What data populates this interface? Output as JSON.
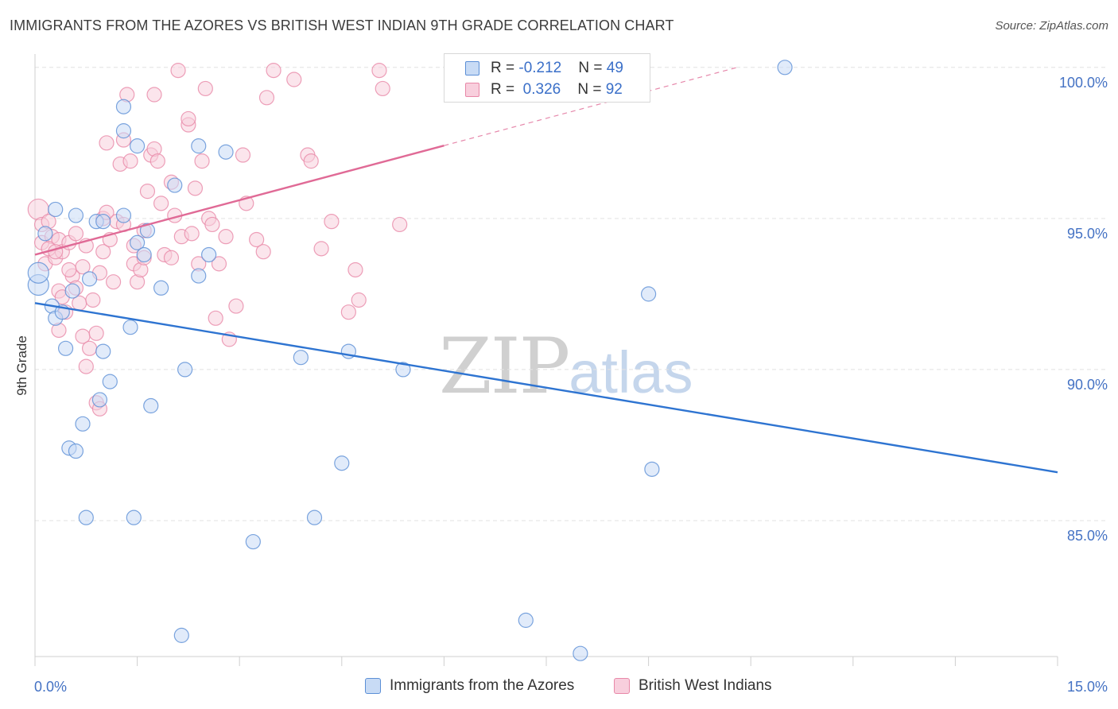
{
  "title": "IMMIGRANTS FROM THE AZORES VS BRITISH WEST INDIAN 9TH GRADE CORRELATION CHART",
  "source": "Source: ZipAtlas.com",
  "watermark": {
    "zip": "ZIP",
    "atlas": "atlas"
  },
  "legend_top": {
    "rows": [
      {
        "r_label": "R = ",
        "r_value": "-0.212",
        "n_label": "N = ",
        "n_value": "49"
      },
      {
        "r_label": "R = ",
        "r_value": " 0.326",
        "n_label": "N = ",
        "n_value": "92"
      }
    ]
  },
  "legend_bottom": [
    "Immigrants from the Azores",
    "British West Indians"
  ],
  "colors": {
    "blue": "#5b8fd6",
    "blue_fill": "#c8dbf5",
    "blue_line": "#2e74d1",
    "pink": "#e888a8",
    "pink_fill": "#f8cfdd",
    "pink_line": "#e06a96",
    "tick_text": "#4472c4"
  },
  "chart_data": {
    "type": "scatter",
    "title": "IMMIGRANTS FROM THE AZORES VS BRITISH WEST INDIAN 9TH GRADE CORRELATION CHART",
    "xlabel": "",
    "ylabel": "9th Grade",
    "xlim": [
      0,
      15
    ],
    "ylim": [
      80.5,
      100.6
    ],
    "x_tick_labels": [
      "0.0%",
      "15.0%"
    ],
    "y_ticks": [
      85,
      90,
      95,
      100
    ],
    "y_tick_labels": [
      "85.0%",
      "90.0%",
      "95.0%",
      "100.0%"
    ],
    "grid": true,
    "legend_position": "top-center",
    "series": [
      {
        "name": "Immigrants from the Azores",
        "R": -0.212,
        "N": 49,
        "trend": {
          "x": [
            0,
            15
          ],
          "y": [
            92.2,
            86.6
          ],
          "solid_until": 15
        },
        "points": [
          [
            0.05,
            92.8
          ],
          [
            0.05,
            93.2
          ],
          [
            0.15,
            94.5
          ],
          [
            0.25,
            92.1
          ],
          [
            0.3,
            95.3
          ],
          [
            0.3,
            91.7
          ],
          [
            0.4,
            91.9
          ],
          [
            0.45,
            90.7
          ],
          [
            0.5,
            87.4
          ],
          [
            0.55,
            92.6
          ],
          [
            0.6,
            87.3
          ],
          [
            0.6,
            95.1
          ],
          [
            0.7,
            88.2
          ],
          [
            0.75,
            85.1
          ],
          [
            0.8,
            93.0
          ],
          [
            0.9,
            94.9
          ],
          [
            0.95,
            89.0
          ],
          [
            1.0,
            90.6
          ],
          [
            1.1,
            89.6
          ],
          [
            1.3,
            97.9
          ],
          [
            1.3,
            98.7
          ],
          [
            1.3,
            95.1
          ],
          [
            1.4,
            91.4
          ],
          [
            1.45,
            85.1
          ],
          [
            1.5,
            94.2
          ],
          [
            1.5,
            97.4
          ],
          [
            1.6,
            93.8
          ],
          [
            1.65,
            94.6
          ],
          [
            1.7,
            88.8
          ],
          [
            1.85,
            92.7
          ],
          [
            2.05,
            96.1
          ],
          [
            2.15,
            81.2
          ],
          [
            2.2,
            90.0
          ],
          [
            2.4,
            93.1
          ],
          [
            2.4,
            97.4
          ],
          [
            2.55,
            93.8
          ],
          [
            2.8,
            97.2
          ],
          [
            3.2,
            84.3
          ],
          [
            3.9,
            90.4
          ],
          [
            4.1,
            85.1
          ],
          [
            4.5,
            86.9
          ],
          [
            4.6,
            90.6
          ],
          [
            5.4,
            90.0
          ],
          [
            7.2,
            81.7
          ],
          [
            8.0,
            80.6
          ],
          [
            9.0,
            92.5
          ],
          [
            9.05,
            86.7
          ],
          [
            11.0,
            100.0
          ],
          [
            1.0,
            94.9
          ]
        ]
      },
      {
        "name": "British West Indians",
        "R": 0.326,
        "N": 92,
        "trend": {
          "x": [
            0,
            10.3
          ],
          "y": [
            93.8,
            100.0
          ],
          "solid_until": 6.0
        },
        "points": [
          [
            0.05,
            95.3
          ],
          [
            0.1,
            94.8
          ],
          [
            0.1,
            94.2
          ],
          [
            0.15,
            93.5
          ],
          [
            0.2,
            94.9
          ],
          [
            0.25,
            94.4
          ],
          [
            0.3,
            93.7
          ],
          [
            0.35,
            94.3
          ],
          [
            0.35,
            92.6
          ],
          [
            0.4,
            93.9
          ],
          [
            0.4,
            92.4
          ],
          [
            0.45,
            91.9
          ],
          [
            0.5,
            94.2
          ],
          [
            0.55,
            93.1
          ],
          [
            0.6,
            94.5
          ],
          [
            0.6,
            92.7
          ],
          [
            0.65,
            92.2
          ],
          [
            0.7,
            91.1
          ],
          [
            0.7,
            93.4
          ],
          [
            0.75,
            90.1
          ],
          [
            0.75,
            94.1
          ],
          [
            0.8,
            90.7
          ],
          [
            0.85,
            92.3
          ],
          [
            0.9,
            91.2
          ],
          [
            0.9,
            88.9
          ],
          [
            0.95,
            88.7
          ],
          [
            1.0,
            95.0
          ],
          [
            1.0,
            93.9
          ],
          [
            1.05,
            97.5
          ],
          [
            1.05,
            95.2
          ],
          [
            1.1,
            94.3
          ],
          [
            1.15,
            92.9
          ],
          [
            1.2,
            94.9
          ],
          [
            1.25,
            96.8
          ],
          [
            1.3,
            97.6
          ],
          [
            1.3,
            94.8
          ],
          [
            1.35,
            99.1
          ],
          [
            1.4,
            96.9
          ],
          [
            1.45,
            93.5
          ],
          [
            1.5,
            92.9
          ],
          [
            1.55,
            93.3
          ],
          [
            1.6,
            94.6
          ],
          [
            1.65,
            95.9
          ],
          [
            1.7,
            97.1
          ],
          [
            1.75,
            97.3
          ],
          [
            1.75,
            99.1
          ],
          [
            1.8,
            96.9
          ],
          [
            1.85,
            95.5
          ],
          [
            1.9,
            93.8
          ],
          [
            2.0,
            96.2
          ],
          [
            2.0,
            93.7
          ],
          [
            2.05,
            95.1
          ],
          [
            2.1,
            99.9
          ],
          [
            2.15,
            94.4
          ],
          [
            2.25,
            98.1
          ],
          [
            2.25,
            98.3
          ],
          [
            2.3,
            94.5
          ],
          [
            2.35,
            96.0
          ],
          [
            2.4,
            93.5
          ],
          [
            2.45,
            96.9
          ],
          [
            2.5,
            99.3
          ],
          [
            2.55,
            95.0
          ],
          [
            2.6,
            94.8
          ],
          [
            2.65,
            91.7
          ],
          [
            2.7,
            93.5
          ],
          [
            2.8,
            94.4
          ],
          [
            2.85,
            91.0
          ],
          [
            2.95,
            92.1
          ],
          [
            3.05,
            97.1
          ],
          [
            3.1,
            95.5
          ],
          [
            3.25,
            94.3
          ],
          [
            3.35,
            93.9
          ],
          [
            3.4,
            99.0
          ],
          [
            3.5,
            99.9
          ],
          [
            3.8,
            99.6
          ],
          [
            4.0,
            97.1
          ],
          [
            4.05,
            96.9
          ],
          [
            4.2,
            94.0
          ],
          [
            4.35,
            94.9
          ],
          [
            4.6,
            91.9
          ],
          [
            4.7,
            93.3
          ],
          [
            4.75,
            92.3
          ],
          [
            5.05,
            99.9
          ],
          [
            5.1,
            99.3
          ],
          [
            5.35,
            94.8
          ],
          [
            0.5,
            93.3
          ],
          [
            0.35,
            91.3
          ],
          [
            0.2,
            94.0
          ],
          [
            1.45,
            94.1
          ],
          [
            0.95,
            93.2
          ],
          [
            1.6,
            93.7
          ],
          [
            0.3,
            93.9
          ]
        ]
      }
    ]
  }
}
